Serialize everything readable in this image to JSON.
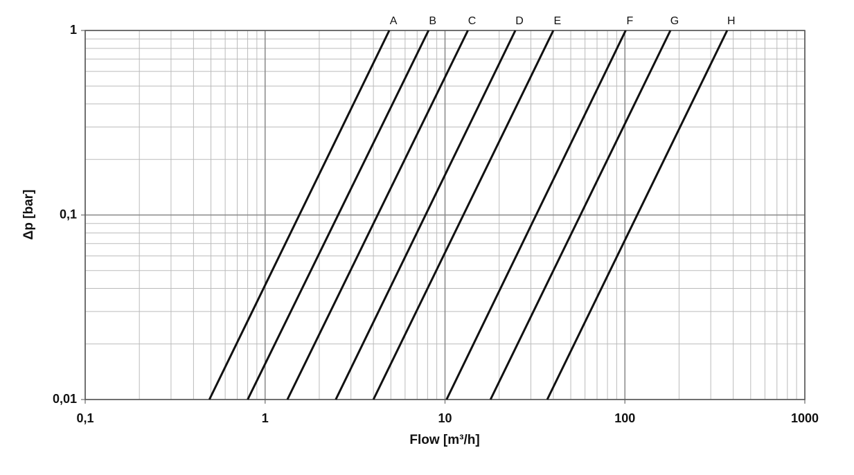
{
  "chart_data": {
    "type": "line",
    "log_x": true,
    "log_y": true,
    "grid": true,
    "xlabel": "Flow [m³/h]",
    "ylabel": "Δp [bar]",
    "xlim": [
      0.1,
      1000
    ],
    "ylim": [
      0.01,
      1
    ],
    "xticks": [
      {
        "value": 0.1,
        "label": "0,1"
      },
      1,
      10,
      100,
      1000
    ],
    "yticks": [
      {
        "value": 0.01,
        "label": "0,01"
      },
      {
        "value": 0.1,
        "label": "0,1"
      },
      1
    ],
    "color": "#111111",
    "series": [
      {
        "name": "A",
        "x": [
          0.49,
          4.9
        ],
        "values": [
          0.01,
          1
        ]
      },
      {
        "name": "B",
        "x": [
          0.8,
          8.1
        ],
        "values": [
          0.01,
          1
        ]
      },
      {
        "name": "C",
        "x": [
          1.33,
          13.4
        ],
        "values": [
          0.01,
          1
        ]
      },
      {
        "name": "D",
        "x": [
          2.47,
          24.6
        ],
        "values": [
          0.01,
          1
        ]
      },
      {
        "name": "E",
        "x": [
          4.0,
          40
        ],
        "values": [
          0.01,
          1
        ]
      },
      {
        "name": "F",
        "x": [
          10.2,
          101
        ],
        "values": [
          0.01,
          1
        ]
      },
      {
        "name": "G",
        "x": [
          17.9,
          179
        ],
        "values": [
          0.01,
          1
        ]
      },
      {
        "name": "H",
        "x": [
          37,
          370
        ],
        "values": [
          0.01,
          1
        ]
      }
    ]
  }
}
